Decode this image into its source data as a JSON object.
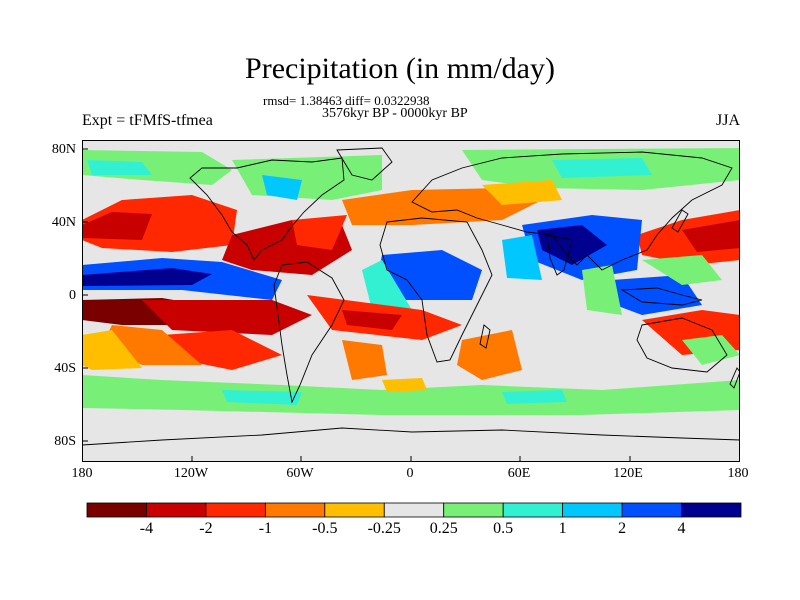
{
  "title": "Precipitation (in mm/day)",
  "stats_line": "rmsd= 1.38463 diff= 0.0322938",
  "period_line": "3576kyr BP - 0000kyr BP",
  "experiment_label": "Expt = tFMfS-tfmea",
  "season_label": "JJA",
  "lat_ticks": [
    "80N",
    "40N",
    "0",
    "40S",
    "80S"
  ],
  "lon_ticks": [
    "180",
    "120W",
    "60W",
    "0",
    "60E",
    "120E",
    "180"
  ],
  "colorbar": {
    "labels": [
      "-4",
      "-2",
      "-1",
      "-0.5",
      "-0.25",
      "0.25",
      "0.5",
      "1",
      "2",
      "4"
    ],
    "colors": [
      "#7a0000",
      "#c80000",
      "#ff2800",
      "#ff7800",
      "#ffbe00",
      "#e6e6e6",
      "#78f078",
      "#32f0d2",
      "#00c8ff",
      "#0050ff",
      "#000090"
    ]
  },
  "map_colors": {
    "ocean_background": "#e6e6e6",
    "coastline": "#000000"
  }
}
